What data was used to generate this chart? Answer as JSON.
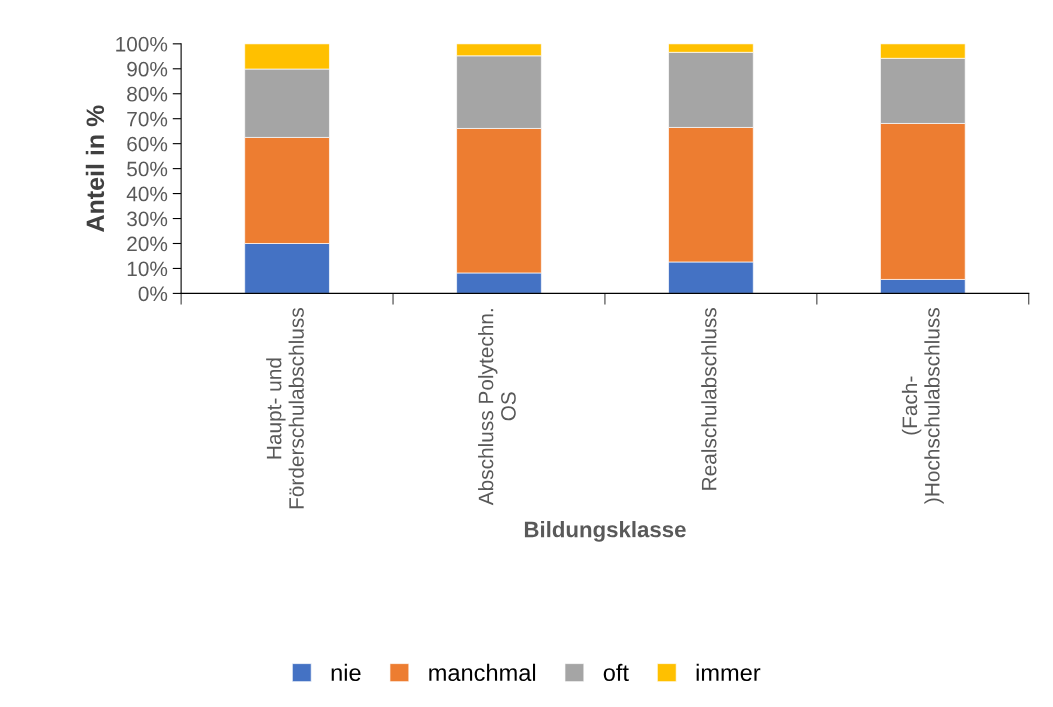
{
  "chart_data": {
    "type": "bar",
    "stacked": true,
    "xlabel": "Bildungsklasse",
    "ylabel": "Anteil in %",
    "categories": [
      "Haupt- und\nFörderschulabschluss",
      "Abschluss Polytechn.\nOS",
      "Realschulabschluss",
      "(Fach-\n)Hochschulabschluss"
    ],
    "series": [
      {
        "name": "nie",
        "color": "#4472c4",
        "values": [
          20,
          8.2,
          12.6,
          5.6
        ]
      },
      {
        "name": "manchmal",
        "color": "#ed7d31",
        "values": [
          42.5,
          57.9,
          53.9,
          62.5
        ]
      },
      {
        "name": "oft",
        "color": "#a5a5a5",
        "values": [
          27.4,
          29.1,
          30.1,
          26.1
        ]
      },
      {
        "name": "immer",
        "color": "#ffc000",
        "values": [
          10.1,
          4.8,
          3.4,
          5.8
        ]
      }
    ],
    "ylim": [
      0,
      100
    ],
    "yticks": [
      {
        "value": 0,
        "label": "0%"
      },
      {
        "value": 10,
        "label": "10%"
      },
      {
        "value": 20,
        "label": "20%"
      },
      {
        "value": 30,
        "label": "30%"
      },
      {
        "value": 40,
        "label": "40%"
      },
      {
        "value": 50,
        "label": "50%"
      },
      {
        "value": 60,
        "label": "60%"
      },
      {
        "value": 70,
        "label": "70%"
      },
      {
        "value": 80,
        "label": "80%"
      },
      {
        "value": 90,
        "label": "90%"
      },
      {
        "value": 100,
        "label": "100%"
      }
    ],
    "grid": false,
    "legend": "bottom"
  }
}
